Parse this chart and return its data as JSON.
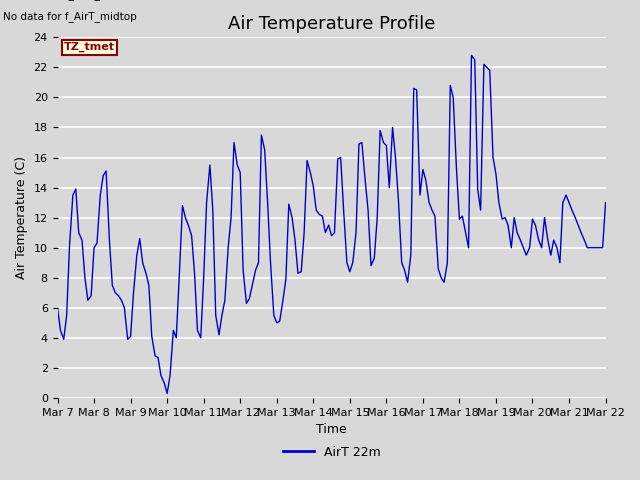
{
  "title": "Air Temperature Profile",
  "xlabel": "Time",
  "ylabel": "Air Temperature (C)",
  "legend_label": "AirT 22m",
  "annotations": [
    "No data for f_AirT_low",
    "No data for f_AirT_midlow",
    "No data for f_AirT_midtop"
  ],
  "tz_label": "TZ_tmet",
  "ylim": [
    0,
    24
  ],
  "yticks": [
    0,
    2,
    4,
    6,
    8,
    10,
    12,
    14,
    16,
    18,
    20,
    22,
    24
  ],
  "x_tick_labels": [
    "Mar 7",
    "Mar 8",
    "Mar 9",
    "Mar 10",
    "Mar 11",
    "Mar 12",
    "Mar 13",
    "Mar 14",
    "Mar 15",
    "Mar 16",
    "Mar 17",
    "Mar 18",
    "Mar 19",
    "Mar 20",
    "Mar 21",
    "Mar 22"
  ],
  "line_color": "#0000cc",
  "background_color": "#e0e0e0",
  "grid_color": "#ffffff",
  "title_fontsize": 13,
  "axis_label_fontsize": 9,
  "tick_fontsize": 8,
  "x_data": [
    0.0,
    0.08,
    0.17,
    0.25,
    0.33,
    0.42,
    0.5,
    0.58,
    0.67,
    0.75,
    0.83,
    0.92,
    1.0,
    1.08,
    1.17,
    1.25,
    1.33,
    1.42,
    1.5,
    1.58,
    1.67,
    1.75,
    1.83,
    1.92,
    2.0,
    2.08,
    2.17,
    2.25,
    2.33,
    2.42,
    2.5,
    2.58,
    2.67,
    2.75,
    2.83,
    2.92,
    3.0,
    3.08,
    3.17,
    3.25,
    3.33,
    3.42,
    3.5,
    3.58,
    3.67,
    3.75,
    3.83,
    3.92,
    4.0,
    4.08,
    4.17,
    4.25,
    4.33,
    4.42,
    4.5,
    4.58,
    4.67,
    4.75,
    4.83,
    4.92,
    5.0,
    5.08,
    5.17,
    5.25,
    5.33,
    5.42,
    5.5,
    5.58,
    5.67,
    5.75,
    5.83,
    5.92,
    6.0,
    6.08,
    6.17,
    6.25,
    6.33,
    6.42,
    6.5,
    6.58,
    6.67,
    6.75,
    6.83,
    6.92,
    7.0,
    7.08,
    7.17,
    7.25,
    7.33,
    7.42,
    7.5,
    7.58,
    7.67,
    7.75,
    7.83,
    7.92,
    8.0,
    8.08,
    8.17,
    8.25,
    8.33,
    8.42,
    8.5,
    8.58,
    8.67,
    8.75,
    8.83,
    8.92,
    9.0,
    9.08,
    9.17,
    9.25,
    9.33,
    9.42,
    9.5,
    9.58,
    9.67,
    9.75,
    9.83,
    9.92,
    10.0,
    10.08,
    10.17,
    10.25,
    10.33,
    10.42,
    10.5,
    10.58,
    10.67,
    10.75,
    10.83,
    10.92,
    11.0,
    11.08,
    11.17,
    11.25,
    11.33,
    11.42,
    11.5,
    11.58,
    11.67,
    11.75,
    11.83,
    11.92,
    12.0,
    12.08,
    12.17,
    12.25,
    12.33,
    12.42,
    12.5,
    12.58,
    12.67,
    12.75,
    12.83,
    12.92,
    13.0,
    13.08,
    13.17,
    13.25,
    13.33,
    13.42,
    13.5,
    13.58,
    13.67,
    13.75,
    13.83,
    13.92,
    14.0,
    14.08,
    14.17,
    14.25,
    14.33,
    14.42,
    14.5,
    14.58,
    14.67,
    14.75,
    14.83,
    14.92,
    15.0
  ],
  "y_data": [
    6.0,
    4.5,
    3.9,
    5.5,
    10.2,
    13.5,
    13.9,
    11.0,
    10.5,
    8.0,
    6.5,
    6.8,
    10.0,
    10.3,
    13.5,
    14.8,
    15.1,
    10.5,
    7.5,
    7.0,
    6.8,
    6.5,
    6.0,
    3.9,
    4.1,
    7.0,
    9.5,
    10.6,
    9.0,
    8.3,
    7.5,
    4.1,
    2.8,
    2.7,
    1.5,
    1.0,
    0.3,
    1.5,
    4.5,
    4.0,
    8.0,
    12.8,
    12.0,
    11.5,
    10.8,
    8.3,
    4.5,
    4.0,
    8.0,
    13.0,
    15.5,
    12.5,
    5.5,
    4.2,
    5.5,
    6.5,
    10.0,
    12.0,
    17.0,
    15.5,
    15.0,
    8.5,
    6.3,
    6.6,
    7.5,
    8.5,
    9.0,
    17.5,
    16.5,
    13.0,
    9.0,
    5.5,
    5.0,
    5.1,
    6.5,
    7.9,
    12.9,
    12.0,
    10.5,
    8.3,
    8.4,
    11.0,
    15.8,
    15.0,
    14.1,
    12.5,
    12.2,
    12.1,
    11.0,
    11.5,
    10.8,
    11.0,
    15.9,
    16.0,
    12.5,
    9.0,
    8.4,
    9.0,
    11.0,
    16.9,
    17.0,
    14.5,
    12.5,
    8.8,
    9.3,
    12.0,
    17.8,
    17.0,
    16.8,
    14.0,
    18.0,
    16.0,
    13.2,
    9.0,
    8.5,
    7.7,
    9.5,
    20.6,
    20.5,
    13.5,
    15.2,
    14.5,
    13.0,
    12.5,
    12.1,
    8.6,
    8.0,
    7.7,
    9.0,
    20.8,
    20.0,
    15.2,
    11.9,
    12.1,
    11.0,
    10.0,
    22.8,
    22.5,
    13.9,
    12.5,
    22.2,
    22.0,
    21.8,
    16.0,
    14.9,
    13.0,
    11.9,
    12.0,
    11.5,
    10.0,
    12.0,
    11.0,
    10.5,
    10.0,
    9.5,
    10.0,
    11.9,
    11.5,
    10.5,
    10.0,
    12.0,
    10.5,
    9.5,
    10.5,
    10.0,
    9.0,
    13.0,
    13.5,
    13.0,
    12.5,
    12.0,
    11.5,
    11.0,
    10.5,
    10.0,
    10.0,
    10.0,
    10.0,
    10.0,
    10.0,
    13.0
  ]
}
